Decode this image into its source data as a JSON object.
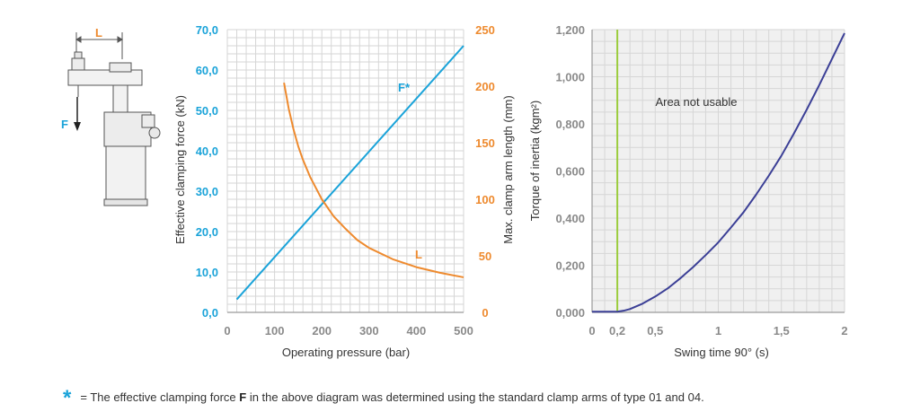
{
  "colors": {
    "blue": "#1aa3d9",
    "orange": "#ee8a2e",
    "navy": "#3b3f96",
    "green": "#9bcc3c",
    "grid": "#d6d6d6",
    "shade": "#f0f0f0",
    "gray_text": "#8a8a8a"
  },
  "diagram": {
    "label_L": "L",
    "label_F": "F"
  },
  "chart_data": [
    {
      "type": "line",
      "xlabel": "Operating pressure (bar)",
      "ylabel_left": "Effective clamping force (kN)",
      "ylabel_right": "Max. clamp arm length (mm)",
      "xlim": [
        0,
        500
      ],
      "ylim_left": [
        0,
        70
      ],
      "ylim_right": [
        0,
        250
      ],
      "grid": true,
      "x_ticks": [
        "0",
        "100",
        "200",
        "300",
        "400",
        "500"
      ],
      "y_left_ticks": [
        "0,0",
        "10,0",
        "20,0",
        "30,0",
        "40,0",
        "50,0",
        "60,0",
        "70,0"
      ],
      "y_right_ticks": [
        "0",
        "50",
        "100",
        "150",
        "200",
        "250"
      ],
      "series": [
        {
          "name": "F*",
          "axis": "left",
          "color": "#1aa3d9",
          "x": [
            20,
            500
          ],
          "y": [
            3.2,
            66.0
          ]
        },
        {
          "name": "L",
          "axis": "right",
          "color": "#ee8a2e",
          "x": [
            120,
            130,
            140,
            150,
            160,
            175,
            190,
            200,
            225,
            250,
            275,
            300,
            350,
            400,
            450,
            500
          ],
          "y": [
            203,
            180,
            162,
            147,
            135,
            120,
            108,
            100,
            85,
            74,
            64,
            57,
            47,
            40,
            35,
            31
          ]
        }
      ]
    },
    {
      "type": "line",
      "xlabel": "Swing time 90° (s)",
      "ylabel": "Torque of inertia (kgm²)",
      "xlim": [
        0,
        2
      ],
      "ylim": [
        0,
        1.2
      ],
      "grid": true,
      "x_ticks": [
        "0",
        "0,2",
        "0,5",
        "1",
        "1,5",
        "2"
      ],
      "y_ticks": [
        "0,000",
        "0,200",
        "0,400",
        "0,600",
        "0,800",
        "1,000",
        "1,200"
      ],
      "annotation": "Area not usable",
      "vline_x": 0.2,
      "series": [
        {
          "color": "#3b3f96",
          "x": [
            0,
            0.2,
            0.25,
            0.3,
            0.4,
            0.5,
            0.6,
            0.7,
            0.8,
            0.9,
            1.0,
            1.1,
            1.2,
            1.3,
            1.4,
            1.5,
            1.6,
            1.7,
            1.8,
            1.9,
            2.0
          ],
          "y": [
            0.003,
            0.003,
            0.007,
            0.014,
            0.037,
            0.067,
            0.102,
            0.145,
            0.192,
            0.243,
            0.297,
            0.36,
            0.425,
            0.5,
            0.58,
            0.665,
            0.76,
            0.86,
            0.965,
            1.075,
            1.185
          ]
        }
      ]
    }
  ],
  "footnote": {
    "star": "*",
    "text_before": "= The effective clamping force ",
    "bold": "F",
    "text_after": " in the above diagram was determined using the standard clamp arms of type 01 and 04."
  }
}
